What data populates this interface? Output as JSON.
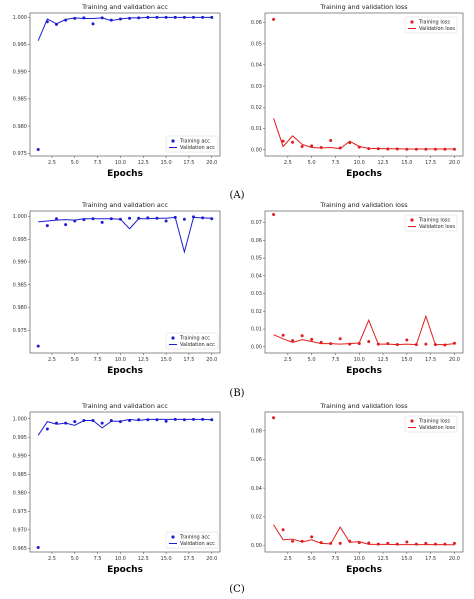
{
  "panels": [
    {
      "label": "(A)"
    },
    {
      "label": "(B)"
    },
    {
      "label": "(C)"
    }
  ],
  "colors": {
    "acc": "#1d1dd0",
    "loss": "#e01e1e",
    "axis": "#444444"
  },
  "chart_data": [
    {
      "type": "line",
      "title": "Training and validation acc",
      "xlabel": "Epochs",
      "ylabel": "",
      "xlim": [
        0.1,
        20.9
      ],
      "ylim": [
        0.9745,
        1.0008
      ],
      "xticks": [
        "2.5",
        "5.0",
        "7.5",
        "10.0",
        "12.5",
        "15.0",
        "17.5",
        "20.0"
      ],
      "yticks": [
        "0.975",
        "0.980",
        "0.985",
        "0.990",
        "0.995",
        "1.000"
      ],
      "legend": "lower-right",
      "series": [
        {
          "name": "Training acc",
          "style": "points",
          "x": [
            1,
            2,
            3,
            4,
            5,
            6,
            7,
            8,
            9,
            10,
            11,
            12,
            13,
            14,
            15,
            16,
            17,
            18,
            19,
            20
          ],
          "values": [
            0.9757,
            0.9992,
            0.9987,
            0.9995,
            0.9998,
            0.9999,
            0.9988,
            0.9999,
            0.9995,
            0.9997,
            0.9998,
            0.9999,
            1.0,
            1.0,
            1.0,
            1.0,
            1.0,
            1.0,
            1.0,
            1.0
          ]
        },
        {
          "name": "Validation acc",
          "style": "line",
          "x": [
            1,
            2,
            3,
            4,
            5,
            6,
            7,
            8,
            9,
            10,
            11,
            12,
            13,
            14,
            15,
            16,
            17,
            18,
            19,
            20
          ],
          "values": [
            0.9957,
            0.9997,
            0.9988,
            0.9996,
            0.9999,
            0.9998,
            0.9998,
            0.9999,
            0.9994,
            0.9997,
            0.9999,
            0.9999,
            1.0,
            1.0,
            1.0,
            1.0,
            1.0,
            1.0,
            1.0,
            1.0
          ]
        }
      ]
    },
    {
      "type": "line",
      "title": "Training and validation loss",
      "xlabel": "Epochs",
      "ylabel": "",
      "xlim": [
        0.1,
        20.9
      ],
      "ylim": [
        -0.003,
        0.0645
      ],
      "xticks": [
        "2.5",
        "5.0",
        "7.5",
        "10.0",
        "12.5",
        "15.0",
        "17.5",
        "20.0"
      ],
      "yticks": [
        "0.00",
        "0.01",
        "0.02",
        "0.03",
        "0.04",
        "0.05",
        "0.06"
      ],
      "legend": "top-right",
      "series": [
        {
          "name": "Training loss",
          "style": "points",
          "x": [
            1,
            2,
            3,
            4,
            5,
            6,
            7,
            8,
            9,
            10,
            11,
            12,
            13,
            14,
            15,
            16,
            17,
            18,
            19,
            20
          ],
          "values": [
            0.0615,
            0.004,
            0.0035,
            0.0015,
            0.0018,
            0.001,
            0.0043,
            0.0008,
            0.0033,
            0.0012,
            0.0005,
            0.0004,
            0.0003,
            0.0003,
            0.0002,
            0.0002,
            0.0002,
            0.0002,
            0.0002,
            0.0002
          ]
        },
        {
          "name": "Validation loss",
          "style": "line",
          "x": [
            1,
            2,
            3,
            4,
            5,
            6,
            7,
            8,
            9,
            10,
            11,
            12,
            13,
            14,
            15,
            16,
            17,
            18,
            19,
            20
          ],
          "values": [
            0.0148,
            0.0015,
            0.0065,
            0.0025,
            0.001,
            0.0008,
            0.001,
            0.0005,
            0.004,
            0.0015,
            0.0006,
            0.0005,
            0.0004,
            0.0004,
            0.0003,
            0.0003,
            0.0003,
            0.0003,
            0.0003,
            0.0003
          ]
        }
      ]
    },
    {
      "type": "line",
      "title": "Training and validation acc",
      "xlabel": "Epochs",
      "ylabel": "",
      "xlim": [
        0.1,
        20.9
      ],
      "ylim": [
        0.97,
        1.0012
      ],
      "xticks": [
        "2.5",
        "5.0",
        "7.5",
        "10.0",
        "12.5",
        "15.0",
        "17.5",
        "20.0"
      ],
      "yticks": [
        "0.975",
        "0.980",
        "0.985",
        "0.990",
        "0.995",
        "1.000"
      ],
      "legend": "lower-right",
      "series": [
        {
          "name": "Training acc",
          "style": "points",
          "x": [
            1,
            2,
            3,
            4,
            5,
            6,
            7,
            8,
            9,
            10,
            11,
            12,
            13,
            14,
            15,
            16,
            17,
            18,
            19,
            20
          ],
          "values": [
            0.9715,
            0.998,
            0.9995,
            0.9982,
            0.999,
            0.9993,
            0.9995,
            0.9987,
            0.9995,
            0.9994,
            0.9996,
            0.9996,
            0.9997,
            0.9996,
            0.999,
            0.9998,
            0.9994,
            0.9999,
            0.9997,
            0.9995
          ]
        },
        {
          "name": "Validation acc",
          "style": "line",
          "x": [
            1,
            2,
            3,
            4,
            5,
            6,
            7,
            8,
            9,
            10,
            11,
            12,
            13,
            14,
            15,
            16,
            17,
            18,
            19,
            20
          ],
          "values": [
            0.9988,
            0.999,
            0.9992,
            0.9993,
            0.9992,
            0.9995,
            0.9995,
            0.9995,
            0.9995,
            0.9994,
            0.9973,
            0.9995,
            0.9995,
            0.9996,
            0.9996,
            0.9998,
            0.9922,
            0.9998,
            0.9997,
            0.9996
          ]
        }
      ]
    },
    {
      "type": "line",
      "title": "Training and validation loss",
      "xlabel": "Epochs",
      "ylabel": "",
      "xlim": [
        0.1,
        20.9
      ],
      "ylim": [
        -0.0035,
        0.0765
      ],
      "xticks": [
        "2.5",
        "5.0",
        "7.5",
        "10.0",
        "12.5",
        "15.0",
        "17.5",
        "20.0"
      ],
      "yticks": [
        "0.00",
        "0.01",
        "0.02",
        "0.03",
        "0.04",
        "0.05",
        "0.06",
        "0.07"
      ],
      "legend": "top-right",
      "series": [
        {
          "name": "Training loss",
          "style": "points",
          "x": [
            1,
            2,
            3,
            4,
            5,
            6,
            7,
            8,
            9,
            10,
            11,
            12,
            13,
            14,
            15,
            16,
            17,
            18,
            19,
            20
          ],
          "values": [
            0.0745,
            0.0065,
            0.0035,
            0.0062,
            0.0042,
            0.0025,
            0.0018,
            0.0045,
            0.0015,
            0.0018,
            0.003,
            0.0015,
            0.0018,
            0.0012,
            0.0038,
            0.0012,
            0.0015,
            0.0012,
            0.001,
            0.002
          ]
        },
        {
          "name": "Validation loss",
          "style": "line",
          "x": [
            1,
            2,
            3,
            4,
            5,
            6,
            7,
            8,
            9,
            10,
            11,
            12,
            13,
            14,
            15,
            16,
            17,
            18,
            19,
            20
          ],
          "values": [
            0.0068,
            0.0045,
            0.0025,
            0.004,
            0.003,
            0.0018,
            0.0018,
            0.0015,
            0.0018,
            0.0022,
            0.015,
            0.0015,
            0.0015,
            0.0012,
            0.0015,
            0.0012,
            0.0172,
            0.0012,
            0.0012,
            0.0018
          ]
        }
      ]
    },
    {
      "type": "line",
      "title": "Training and validation acc",
      "xlabel": "Epochs",
      "ylabel": "",
      "xlim": [
        0.1,
        20.9
      ],
      "ylim": [
        0.964,
        1.0018
      ],
      "xticks": [
        "2.5",
        "5.0",
        "7.5",
        "10.0",
        "12.5",
        "15.0",
        "17.5",
        "20.0"
      ],
      "yticks": [
        "0.965",
        "0.970",
        "0.975",
        "0.980",
        "0.985",
        "0.990",
        "0.995",
        "1.000"
      ],
      "legend": "lower-right",
      "series": [
        {
          "name": "Training acc",
          "style": "points",
          "x": [
            1,
            2,
            3,
            4,
            5,
            6,
            7,
            8,
            9,
            10,
            11,
            12,
            13,
            14,
            15,
            16,
            17,
            18,
            19,
            20
          ],
          "values": [
            0.9652,
            0.9972,
            0.9988,
            0.9988,
            0.9992,
            0.9995,
            0.9995,
            0.9988,
            0.9995,
            0.9992,
            0.9995,
            0.9997,
            0.9997,
            0.9997,
            0.9993,
            0.9998,
            0.9997,
            0.9998,
            0.9998,
            0.9997
          ]
        },
        {
          "name": "Validation acc",
          "style": "line",
          "x": [
            1,
            2,
            3,
            4,
            5,
            6,
            7,
            8,
            9,
            10,
            11,
            12,
            13,
            14,
            15,
            16,
            17,
            18,
            19,
            20
          ],
          "values": [
            0.9955,
            0.9992,
            0.9985,
            0.9988,
            0.9982,
            0.9995,
            0.9995,
            0.9975,
            0.9993,
            0.9993,
            0.9998,
            0.9995,
            0.9998,
            0.9998,
            0.9998,
            0.9998,
            0.9998,
            0.9998,
            0.9998,
            0.9997
          ]
        }
      ]
    },
    {
      "type": "line",
      "title": "Training and validation loss",
      "xlabel": "Epochs",
      "ylabel": "",
      "xlim": [
        0.1,
        20.9
      ],
      "ylim": [
        -0.0045,
        0.093
      ],
      "xticks": [
        "2.5",
        "5.0",
        "7.5",
        "10.0",
        "12.5",
        "15.0",
        "17.5",
        "20.0"
      ],
      "yticks": [
        "0.00",
        "0.02",
        "0.04",
        "0.06",
        "0.08"
      ],
      "legend": "top-right",
      "series": [
        {
          "name": "Training loss",
          "style": "points",
          "x": [
            1,
            2,
            3,
            4,
            5,
            6,
            7,
            8,
            9,
            10,
            11,
            12,
            13,
            14,
            15,
            16,
            17,
            18,
            19,
            20
          ],
          "values": [
            0.089,
            0.011,
            0.003,
            0.003,
            0.006,
            0.002,
            0.0015,
            0.0015,
            0.003,
            0.002,
            0.0018,
            0.001,
            0.0015,
            0.001,
            0.0025,
            0.001,
            0.0015,
            0.001,
            0.001,
            0.0015
          ]
        },
        {
          "name": "Validation loss",
          "style": "line",
          "x": [
            1,
            2,
            3,
            4,
            5,
            6,
            7,
            8,
            9,
            10,
            11,
            12,
            13,
            14,
            15,
            16,
            17,
            18,
            19,
            20
          ],
          "values": [
            0.0145,
            0.004,
            0.0045,
            0.0025,
            0.004,
            0.0015,
            0.0012,
            0.0128,
            0.0022,
            0.0028,
            0.0008,
            0.0008,
            0.0008,
            0.0006,
            0.0006,
            0.0006,
            0.0006,
            0.0006,
            0.0006,
            0.0005
          ]
        }
      ]
    }
  ]
}
